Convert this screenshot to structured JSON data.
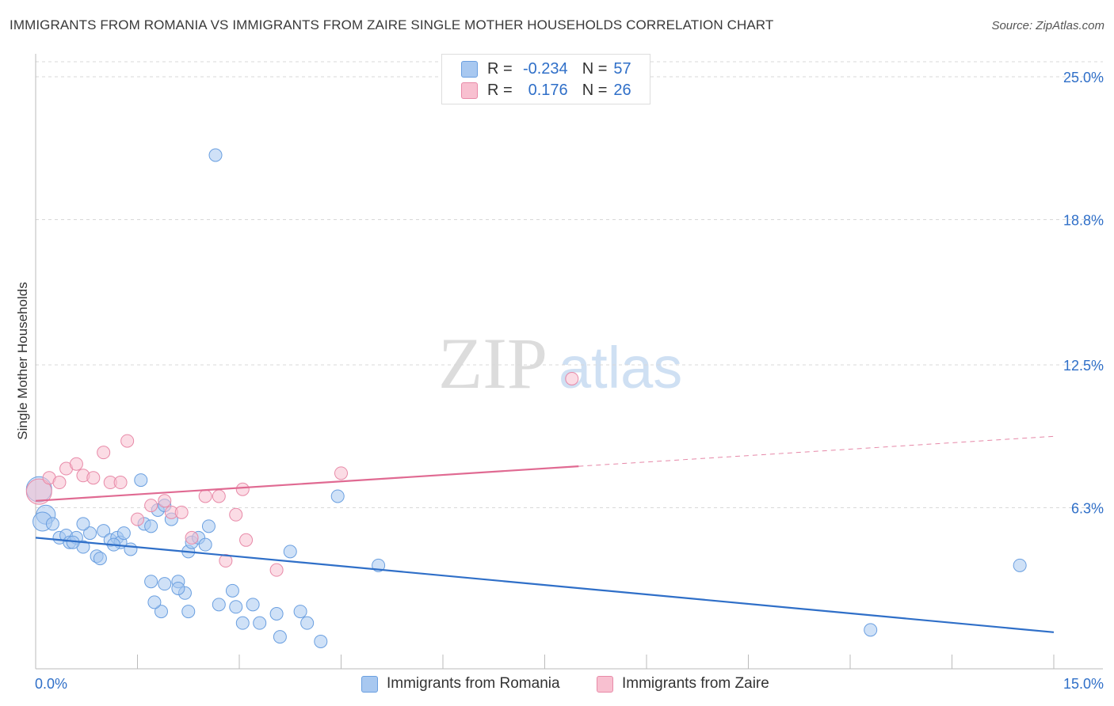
{
  "title": "IMMIGRANTS FROM ROMANIA VS IMMIGRANTS FROM ZAIRE SINGLE MOTHER HOUSEHOLDS CORRELATION CHART",
  "source": "Source: ZipAtlas.com",
  "watermark": {
    "zip": "ZIP",
    "atlas": "atlas"
  },
  "stats": [
    {
      "r_label": "R =",
      "r_value": "-0.234",
      "n_label": "N =",
      "n_value": "57",
      "color": "#a8c8f0",
      "border": "#6a9fe0"
    },
    {
      "r_label": "R =",
      "r_value": "0.176",
      "n_label": "N =",
      "n_value": "26",
      "color": "#f8c0d0",
      "border": "#e88aa8"
    }
  ],
  "legend": [
    {
      "label": "Immigrants from Romania",
      "color": "#a8c8f0",
      "border": "#6a9fe0"
    },
    {
      "label": "Immigrants from Zaire",
      "color": "#f8c0d0",
      "border": "#e88aa8"
    }
  ],
  "chart_data": {
    "type": "scatter",
    "ylabel": "Single Mother Households",
    "xlim": [
      0,
      15
    ],
    "ylim": [
      0,
      25.0
    ],
    "x_tick_labels": [
      "0.0%",
      "15.0%"
    ],
    "y_ticks": [
      {
        "value": 25.0,
        "label": "25.0%"
      },
      {
        "value": 18.8,
        "label": "18.8%"
      },
      {
        "value": 12.5,
        "label": "12.5%"
      },
      {
        "value": 6.3,
        "label": "6.3%"
      }
    ],
    "grid": "horizontal dashed",
    "series": [
      {
        "name": "Immigrants from Romania",
        "color": "#6a9fe0",
        "fill": "#a8c8f0",
        "trend": {
          "x0": 0.0,
          "y0": 5.0,
          "x1": 15.0,
          "y1": 0.9,
          "color": "#2f6fc8"
        },
        "points": [
          [
            0.05,
            7.1
          ],
          [
            0.15,
            6.0
          ],
          [
            0.1,
            5.7
          ],
          [
            0.25,
            5.6
          ],
          [
            0.35,
            5.0
          ],
          [
            0.45,
            5.1
          ],
          [
            0.5,
            4.8
          ],
          [
            0.6,
            5.0
          ],
          [
            0.7,
            4.6
          ],
          [
            0.8,
            5.2
          ],
          [
            0.9,
            4.2
          ],
          [
            0.95,
            4.1
          ],
          [
            1.0,
            5.3
          ],
          [
            1.1,
            4.9
          ],
          [
            1.2,
            5.0
          ],
          [
            1.25,
            4.8
          ],
          [
            1.3,
            5.2
          ],
          [
            1.4,
            4.5
          ],
          [
            1.55,
            7.5
          ],
          [
            1.6,
            5.6
          ],
          [
            1.7,
            5.5
          ],
          [
            1.8,
            6.2
          ],
          [
            1.9,
            6.4
          ],
          [
            2.0,
            5.8
          ],
          [
            2.25,
            4.4
          ],
          [
            2.3,
            4.8
          ],
          [
            2.4,
            5.0
          ],
          [
            2.5,
            4.7
          ],
          [
            2.55,
            5.5
          ],
          [
            2.65,
            21.6
          ],
          [
            2.9,
            2.7
          ],
          [
            2.95,
            2.0
          ],
          [
            3.05,
            1.3
          ],
          [
            3.2,
            2.1
          ],
          [
            3.3,
            1.3
          ],
          [
            3.55,
            1.7
          ],
          [
            3.6,
            0.7
          ],
          [
            3.75,
            4.4
          ],
          [
            3.9,
            1.8
          ],
          [
            4.0,
            1.3
          ],
          [
            4.2,
            0.5
          ],
          [
            4.45,
            6.8
          ],
          [
            5.05,
            3.8
          ],
          [
            14.5,
            3.8
          ],
          [
            12.3,
            1.0
          ],
          [
            1.7,
            3.1
          ],
          [
            1.9,
            3.0
          ],
          [
            2.1,
            3.1
          ],
          [
            2.2,
            2.6
          ],
          [
            1.85,
            1.8
          ],
          [
            2.25,
            1.8
          ],
          [
            2.1,
            2.8
          ],
          [
            2.7,
            2.1
          ],
          [
            0.55,
            4.8
          ],
          [
            1.15,
            4.7
          ],
          [
            0.7,
            5.6
          ],
          [
            1.75,
            2.2
          ]
        ]
      },
      {
        "name": "Immigrants from Zaire",
        "color": "#e88aa8",
        "fill": "#f8c0d0",
        "trend": {
          "x0": 0.0,
          "y0": 6.6,
          "x1": 8.0,
          "y1": 8.1,
          "x2": 15.0,
          "y2": 9.4,
          "color": "#e06a92"
        },
        "points": [
          [
            0.05,
            7.0
          ],
          [
            0.2,
            7.6
          ],
          [
            0.35,
            7.4
          ],
          [
            0.45,
            8.0
          ],
          [
            0.6,
            8.2
          ],
          [
            0.7,
            7.7
          ],
          [
            0.85,
            7.6
          ],
          [
            1.0,
            8.7
          ],
          [
            1.1,
            7.4
          ],
          [
            1.25,
            7.4
          ],
          [
            1.35,
            9.2
          ],
          [
            1.5,
            5.8
          ],
          [
            1.7,
            6.4
          ],
          [
            1.9,
            6.6
          ],
          [
            2.0,
            6.1
          ],
          [
            2.15,
            6.1
          ],
          [
            2.3,
            5.0
          ],
          [
            2.5,
            6.8
          ],
          [
            2.7,
            6.8
          ],
          [
            2.8,
            4.0
          ],
          [
            2.95,
            6.0
          ],
          [
            3.05,
            7.1
          ],
          [
            3.1,
            4.9
          ],
          [
            3.55,
            3.6
          ],
          [
            4.5,
            7.8
          ],
          [
            7.9,
            11.9
          ]
        ]
      }
    ]
  }
}
